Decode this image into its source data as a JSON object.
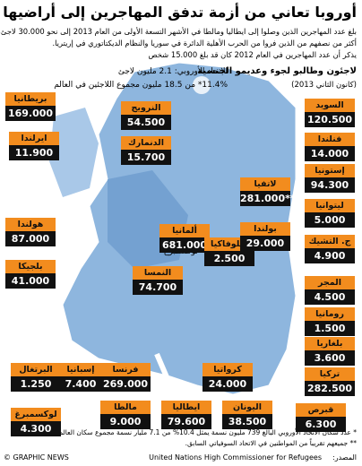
{
  "header": {
    "title": "أوروبا تعاني من أزمة تدفق المهاجرين إلى أراضيها",
    "intro": [
      "بلغ عدد المهاجرين الذين وصلوا إلى ايطاليا ومالطا في الأشهر التسعة الأولى من العام 2013 إلى نحو 30.000 لاجئ،",
      "أكثر من نصفهم من الذين فروا من الحرب الأهلية الدائرة في سوريا والنظام الديكتاتوري في إريتريا.",
      "يذكر أن عدد المهاجرين في العام 2012 كان قد بلغ 15.000 شخص"
    ]
  },
  "legend": {
    "heading": "لاجئون وطالبو لجوء وعديمو الجنسية",
    "date": "(كانون الثاني 2013)",
    "eu_total": "الاتحاد الأوروبي: 2.1 مليون لاجئ",
    "eu_share": "11.4%* من 18.5 مليون مجموع اللاجئين في العالم"
  },
  "map": {
    "center_label": "لوكسمبرغ"
  },
  "countries": [
    {
      "name": "بريطانيا",
      "value": "169.000"
    },
    {
      "name": "ايرلندا",
      "value": "11.900"
    },
    {
      "name": "هولندا",
      "value": "87.000"
    },
    {
      "name": "بلجيكا",
      "value": "41.000"
    },
    {
      "name": "البرتغال",
      "value": "1.250"
    },
    {
      "name": "إسبانيا",
      "value": "7.400"
    },
    {
      "name": "فرنسا",
      "value": "269.000"
    },
    {
      "name": "كرواتيا",
      "value": "24.000"
    },
    {
      "name": "لوكسمبرغ",
      "value": "4.300"
    },
    {
      "name": "مالطا",
      "value": "9.000"
    },
    {
      "name": "ايطاليا",
      "value": "79.600"
    },
    {
      "name": "اليونان",
      "value": "38.500"
    },
    {
      "name": "قبرص",
      "value": "6.300"
    },
    {
      "name": "النرويج",
      "value": "54.500"
    },
    {
      "name": "الدنمارك",
      "value": "15.700"
    },
    {
      "name": "ألمانيا",
      "value": "681.000"
    },
    {
      "name": "النمسا",
      "value": "74.700"
    },
    {
      "name": "سلوفاكيا",
      "value": "2.500"
    },
    {
      "name": "السويد",
      "value": "120.500"
    },
    {
      "name": "فنلندا",
      "value": "14.000"
    },
    {
      "name": "إستونيا",
      "value": "94.300"
    },
    {
      "name": "ليتوانيا",
      "value": "5.000"
    },
    {
      "name": "لاتفيا",
      "value": "281.000**"
    },
    {
      "name": "بولندا",
      "value": "29.000"
    },
    {
      "name": "ج. التشيك",
      "value": "4.900"
    },
    {
      "name": "المجر",
      "value": "4.500"
    },
    {
      "name": "رومانيا",
      "value": "1.500"
    },
    {
      "name": "بلغاريا",
      "value": "3.600"
    },
    {
      "name": "تركيا",
      "value": "282.500"
    }
  ],
  "footer": {
    "notes": [
      "* عدد سكان الاتحاد الأوروبي البالغ 739 مليون نسمة يمثل 10.4% من 7.1 مليار نسمة مجموع سكان العالم.",
      "** جميعهم تقريباً من المواطنين في الاتحاد السوفياتي السابق."
    ],
    "credit": "© GRAPHIC NEWS",
    "source_label": "المصدر:",
    "source": "United Nations High Commissioner for Refugees"
  }
}
